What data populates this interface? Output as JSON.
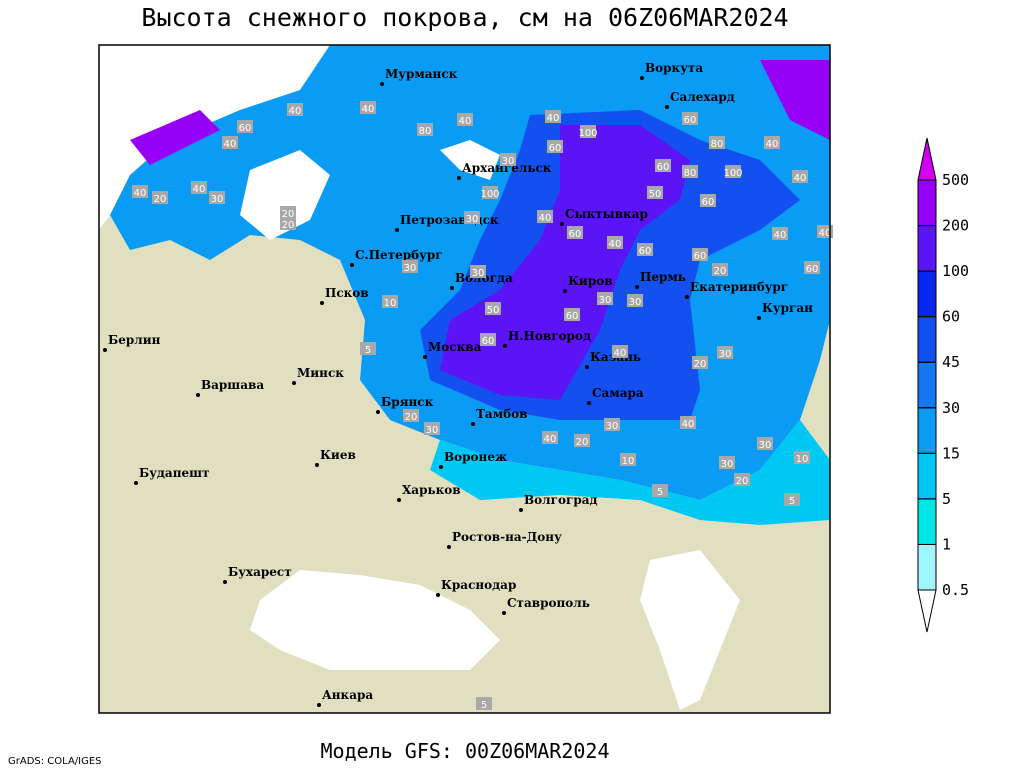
{
  "header": {
    "title": "Высота снежного покрова, см на 06Z06MAR2024"
  },
  "footer": {
    "model": "Модель GFS: 00Z06MAR2024",
    "credit": "GrADS: COLA/IGES"
  },
  "legend": {
    "levels": [
      0.5,
      1,
      5,
      15,
      30,
      45,
      60,
      100,
      200,
      500
    ],
    "colors": [
      "#ffffff",
      "#a0f5ff",
      "#00e6e6",
      "#00c8f5",
      "#0a9bf5",
      "#1478f0",
      "#1450f0",
      "#0a28f0",
      "#5a14f5",
      "#9600f5",
      "#d200f0"
    ]
  },
  "cities": [
    "Мурманск",
    "Воркута",
    "Салехард",
    "Архангельск",
    "Петрозаводск",
    "Сыктывкар",
    "С.Петербург",
    "Вологда",
    "Киров",
    "Пермь",
    "Екатеринбург",
    "Курган",
    "Псков",
    "Берлин",
    "Минск",
    "Москва",
    "Н.Новгород",
    "Казань",
    "Варшава",
    "Брянск",
    "Тамбов",
    "Самара",
    "Киев",
    "Воронеж",
    "Будапешт",
    "Харьков",
    "Волгоград",
    "Ростов-на-Дону",
    "Бухарест",
    "Краснодар",
    "Ставрополь",
    "Анкара"
  ],
  "contour_labels": [
    40,
    60,
    40,
    40,
    80,
    40,
    40,
    100,
    60,
    80,
    40,
    60,
    80,
    100,
    40,
    100,
    60,
    30,
    30,
    40,
    50,
    60,
    40,
    40,
    40,
    60,
    60,
    20,
    60,
    30,
    30,
    10,
    50,
    60,
    30,
    30,
    60,
    30,
    40,
    20,
    30,
    10,
    30,
    20,
    30,
    10,
    5,
    5,
    20,
    30,
    5,
    20,
    30,
    40,
    40,
    20,
    20,
    60,
    40,
    40,
    20,
    5
  ]
}
